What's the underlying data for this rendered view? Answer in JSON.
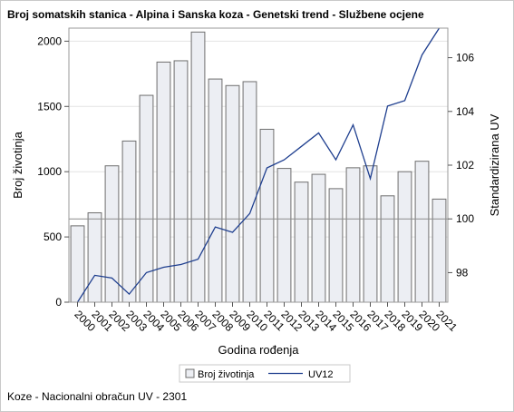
{
  "title": "Broj somatskih stanica - Alpina i Sanska koza - Genetski trend - Službene ocjene",
  "footnote": "Koze - Nacionalni obračun UV - 2301",
  "chart_data": {
    "type": "bar+line",
    "categories": [
      "2000",
      "2001",
      "2002",
      "2003",
      "2004",
      "2005",
      "2006",
      "2007",
      "2008",
      "2009",
      "2010",
      "2011",
      "2012",
      "2013",
      "2014",
      "2015",
      "2016",
      "2017",
      "2018",
      "2019",
      "2020",
      "2021"
    ],
    "xlabel": "Godina rođenja",
    "ylabel_left": "Broj životinja",
    "ylabel_right": "Standardizirana UV",
    "ylim_left": [
      0,
      2100
    ],
    "yticks_left": [
      "0",
      "500",
      "1000",
      "1500",
      "2000"
    ],
    "ylim_right": [
      96.9,
      107.1
    ],
    "yticks_right": [
      "98",
      "100",
      "102",
      "104",
      "106"
    ],
    "reference_line_right": 100,
    "series": [
      {
        "name": "Broj životinja",
        "kind": "bar",
        "values": [
          585,
          685,
          1045,
          1235,
          1585,
          1840,
          1850,
          2070,
          1710,
          1660,
          1690,
          1325,
          1025,
          920,
          980,
          870,
          1030,
          1045,
          815,
          1000,
          1080,
          790
        ]
      },
      {
        "name": "UV12",
        "kind": "line",
        "values": [
          96.9,
          97.9,
          97.8,
          97.2,
          98.0,
          98.2,
          98.3,
          98.5,
          99.7,
          99.5,
          100.2,
          101.9,
          102.2,
          102.7,
          103.2,
          102.2,
          103.5,
          101.5,
          104.2,
          104.4,
          106.1,
          107.1
        ]
      }
    ],
    "bar_fill": "#eceef3",
    "bar_stroke": "#6e6e6e",
    "line_color": "#1f3f8f",
    "grid": true,
    "legend": "bottom"
  }
}
